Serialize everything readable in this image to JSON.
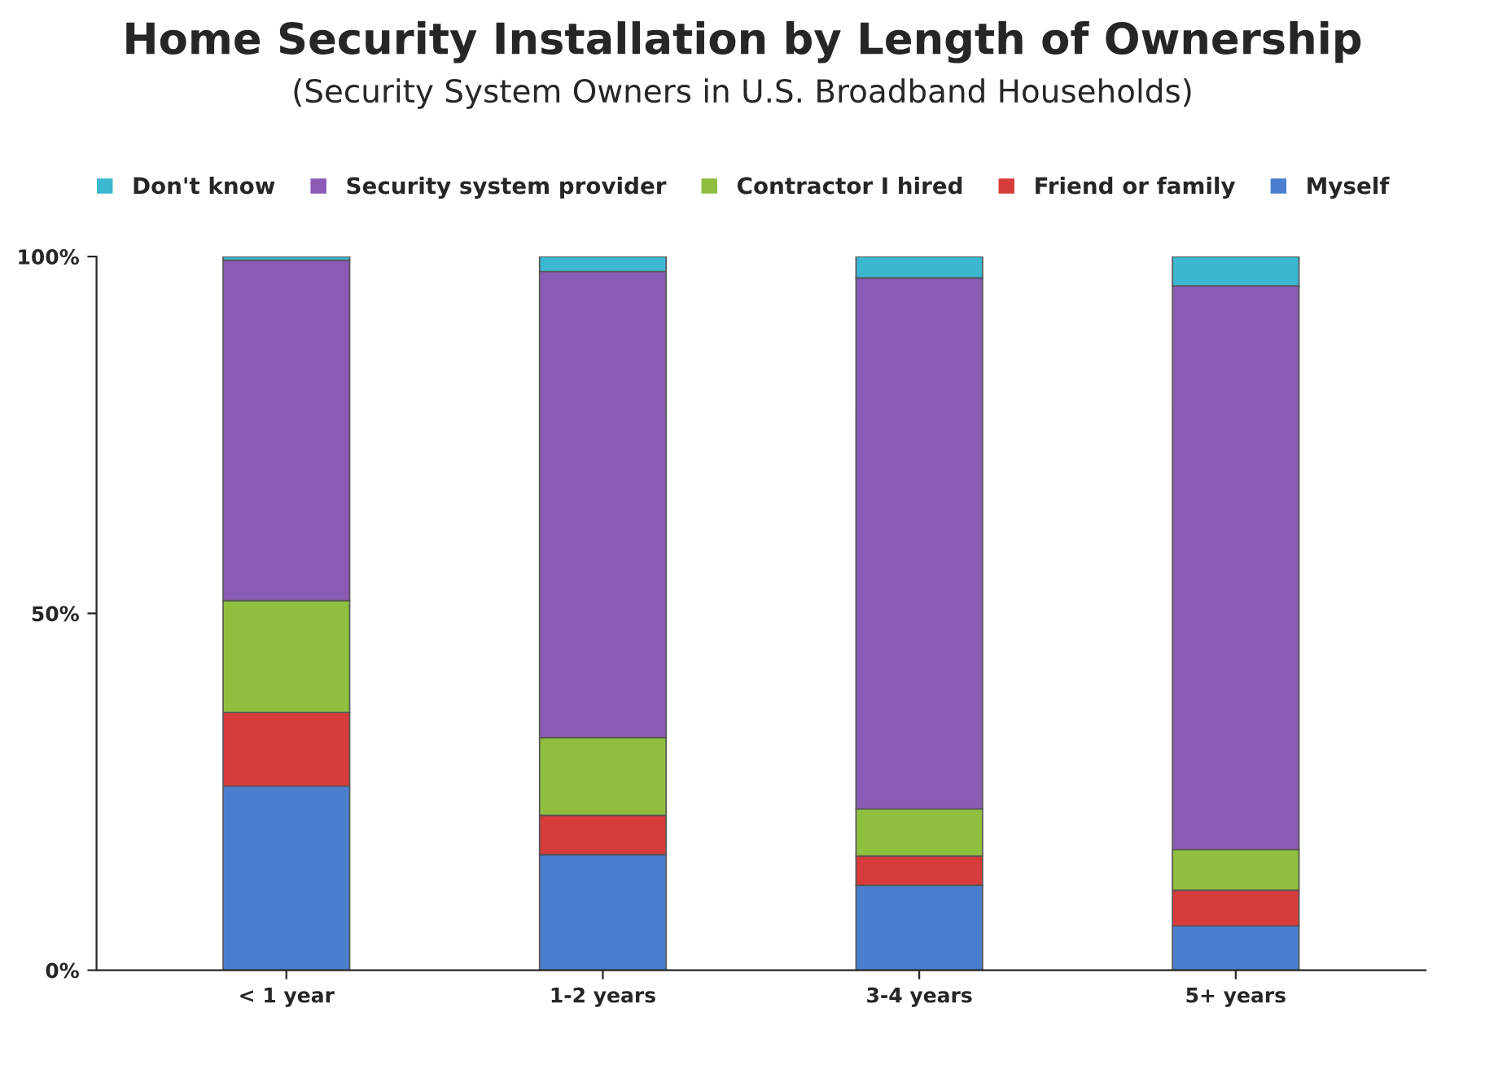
{
  "chart_data": {
    "type": "bar",
    "title": "Home Security Installation by Length of Ownership",
    "subtitle": "(Security System Owners in U.S. Broadband Households)",
    "categories": [
      "< 1 year",
      "1-2 years",
      "3-4 years",
      "5+ years"
    ],
    "stacked": true,
    "series": [
      {
        "name": "Myself",
        "color": "#4a7fd0",
        "values": [
          25.8,
          16.2,
          11.9,
          6.2
        ]
      },
      {
        "name": "Friend or family",
        "color": "#d63c3a",
        "values": [
          10.3,
          5.5,
          4.1,
          5.0
        ]
      },
      {
        "name": "Contractor I hired",
        "color": "#8fbf3f",
        "values": [
          15.7,
          10.9,
          6.6,
          5.7
        ]
      },
      {
        "name": "Security system provider",
        "color": "#8a5bb5",
        "values": [
          47.7,
          65.3,
          74.4,
          79.0
        ]
      },
      {
        "name": "Don't know",
        "color": "#3bb7cf",
        "values": [
          0.5,
          2.1,
          3.0,
          4.1
        ]
      }
    ],
    "ylim": [
      0,
      100
    ],
    "yticks": [
      {
        "value": 0,
        "label": "0%"
      },
      {
        "value": 50,
        "label": "50%"
      },
      {
        "value": 100,
        "label": "100%"
      }
    ],
    "grid": false,
    "legend": "top"
  }
}
